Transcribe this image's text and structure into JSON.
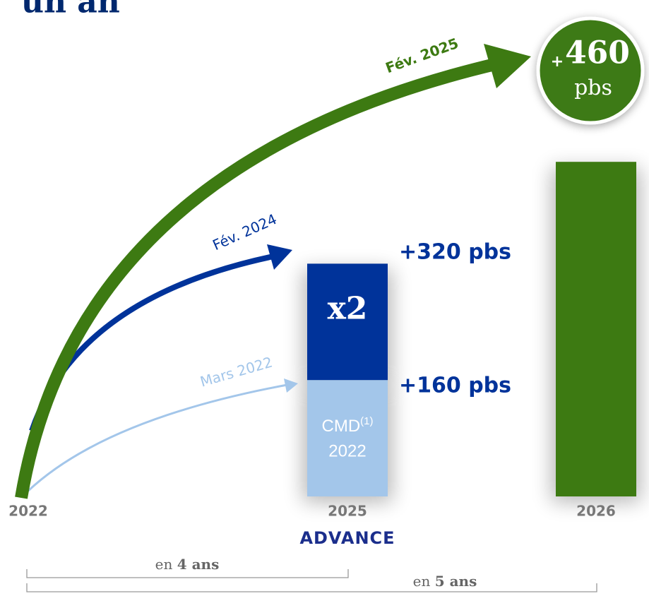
{
  "chart_data": {
    "type": "bar",
    "title": "un an",
    "categories": [
      "2022",
      "2025",
      "2026"
    ],
    "series": [
      {
        "name": "Mars 2022",
        "color": "#a3c6ea",
        "values": [
          null,
          160,
          null
        ]
      },
      {
        "name": "Fév. 2024",
        "color": "#00339a",
        "values": [
          null,
          160,
          null
        ]
      },
      {
        "name": "Fév. 2025",
        "color": "#3d7a12",
        "values": [
          null,
          null,
          460
        ]
      }
    ],
    "annotations": [
      "+160 pbs",
      "+320 pbs",
      "x2",
      "CMD",
      "(1)",
      "2022",
      "ADVANCE"
    ],
    "badge": {
      "prefix": "+",
      "value": 460,
      "unit": "pbs"
    },
    "periods": [
      {
        "prefix": "en",
        "bold": "4 ans"
      },
      {
        "prefix": "en",
        "bold": "5 ans"
      }
    ]
  }
}
